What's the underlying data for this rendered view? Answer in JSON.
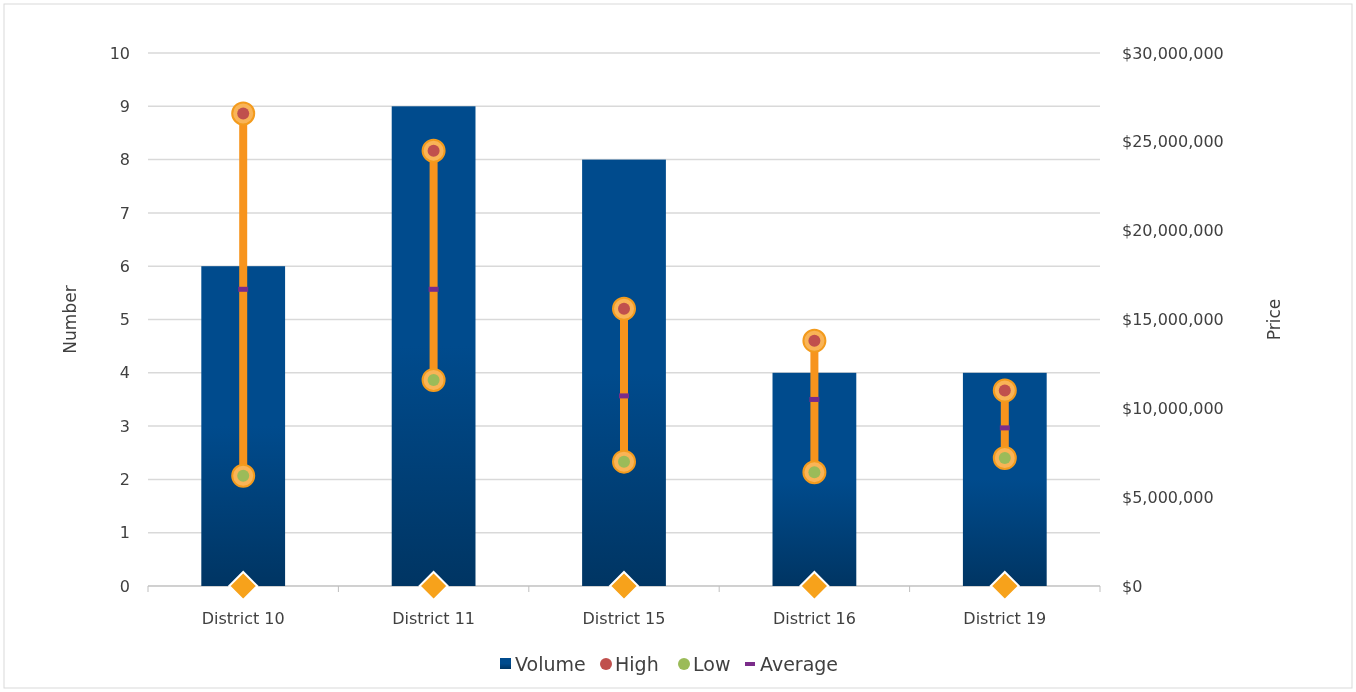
{
  "chart_data": {
    "type": "bar",
    "categories": [
      "District 10",
      "District 11",
      "District 15",
      "District 16",
      "District 19"
    ],
    "ylabel": "Number",
    "y2label": "Price",
    "ylim": [
      0,
      10
    ],
    "yticks": [
      0,
      1,
      2,
      3,
      4,
      5,
      6,
      7,
      8,
      9,
      10
    ],
    "y2lim": [
      0,
      30000000
    ],
    "y2ticks": [
      {
        "value": 0,
        "label": "$0"
      },
      {
        "value": 5000000,
        "label": "$5,000,000"
      },
      {
        "value": 10000000,
        "label": "$10,000,000"
      },
      {
        "value": 15000000,
        "label": "$15,000,000"
      },
      {
        "value": 20000000,
        "label": "$20,000,000"
      },
      {
        "value": 25000000,
        "label": "$25,000,000"
      },
      {
        "value": 30000000,
        "label": "$30,000,000"
      }
    ],
    "grid": "y",
    "legend": "bottom",
    "series": [
      {
        "name": "Volume",
        "color": "#004b8d",
        "values": [
          6,
          9,
          8,
          4,
          4
        ]
      },
      {
        "name": "High",
        "type": "scatter",
        "axis": "y2",
        "marker": "circle",
        "color": "#c0504d",
        "values": [
          26600000,
          24500000,
          15600000,
          13800000,
          11000000
        ]
      },
      {
        "name": "Low",
        "type": "scatter",
        "axis": "y2",
        "marker": "circle",
        "color": "#9bbb59",
        "values": [
          6200000,
          11600000,
          7000000,
          6400000,
          7200000
        ]
      },
      {
        "name": "Average",
        "type": "scatter",
        "axis": "y2",
        "marker": "square",
        "color": "#7b2c8a",
        "values": [
          16700000,
          16700000,
          10700000,
          10500000,
          8900000
        ]
      },
      {
        "type": "scatter",
        "axis": "y2",
        "marker": "diamond",
        "color": "#f7a21b",
        "values": [
          0,
          0,
          0,
          0,
          0
        ]
      }
    ]
  }
}
